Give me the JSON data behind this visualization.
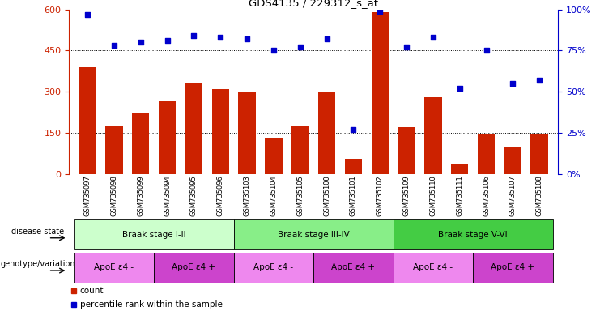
{
  "title": "GDS4135 / 229312_s_at",
  "samples": [
    "GSM735097",
    "GSM735098",
    "GSM735099",
    "GSM735094",
    "GSM735095",
    "GSM735096",
    "GSM735103",
    "GSM735104",
    "GSM735105",
    "GSM735100",
    "GSM735101",
    "GSM735102",
    "GSM735109",
    "GSM735110",
    "GSM735111",
    "GSM735106",
    "GSM735107",
    "GSM735108"
  ],
  "counts": [
    390,
    175,
    220,
    265,
    330,
    310,
    300,
    130,
    175,
    300,
    55,
    590,
    170,
    280,
    35,
    145,
    100,
    145
  ],
  "percentiles": [
    97,
    78,
    80,
    81,
    84,
    83,
    82,
    75,
    77,
    82,
    27,
    99,
    77,
    83,
    52,
    75,
    55,
    57
  ],
  "disease_state_groups": [
    {
      "label": "Braak stage I-II",
      "start": 0,
      "end": 6,
      "color": "#ccffcc"
    },
    {
      "label": "Braak stage III-IV",
      "start": 6,
      "end": 12,
      "color": "#88ee88"
    },
    {
      "label": "Braak stage V-VI",
      "start": 12,
      "end": 18,
      "color": "#44cc44"
    }
  ],
  "genotype_groups": [
    {
      "label": "ApoE ε4 -",
      "start": 0,
      "end": 3,
      "color": "#ee88ee"
    },
    {
      "label": "ApoE ε4 +",
      "start": 3,
      "end": 6,
      "color": "#cc44cc"
    },
    {
      "label": "ApoE ε4 -",
      "start": 6,
      "end": 9,
      "color": "#ee88ee"
    },
    {
      "label": "ApoE ε4 +",
      "start": 9,
      "end": 12,
      "color": "#cc44cc"
    },
    {
      "label": "ApoE ε4 -",
      "start": 12,
      "end": 15,
      "color": "#ee88ee"
    },
    {
      "label": "ApoE ε4 +",
      "start": 15,
      "end": 18,
      "color": "#cc44cc"
    }
  ],
  "bar_color": "#cc2200",
  "dot_color": "#0000cc",
  "left_ylim": [
    0,
    600
  ],
  "right_ylim": [
    0,
    100
  ],
  "left_yticks": [
    0,
    150,
    300,
    450,
    600
  ],
  "right_yticks": [
    0,
    25,
    50,
    75,
    100
  ],
  "hline_values": [
    150,
    300,
    450
  ],
  "left_tick_color": "#cc2200",
  "right_tick_color": "#0000cc"
}
